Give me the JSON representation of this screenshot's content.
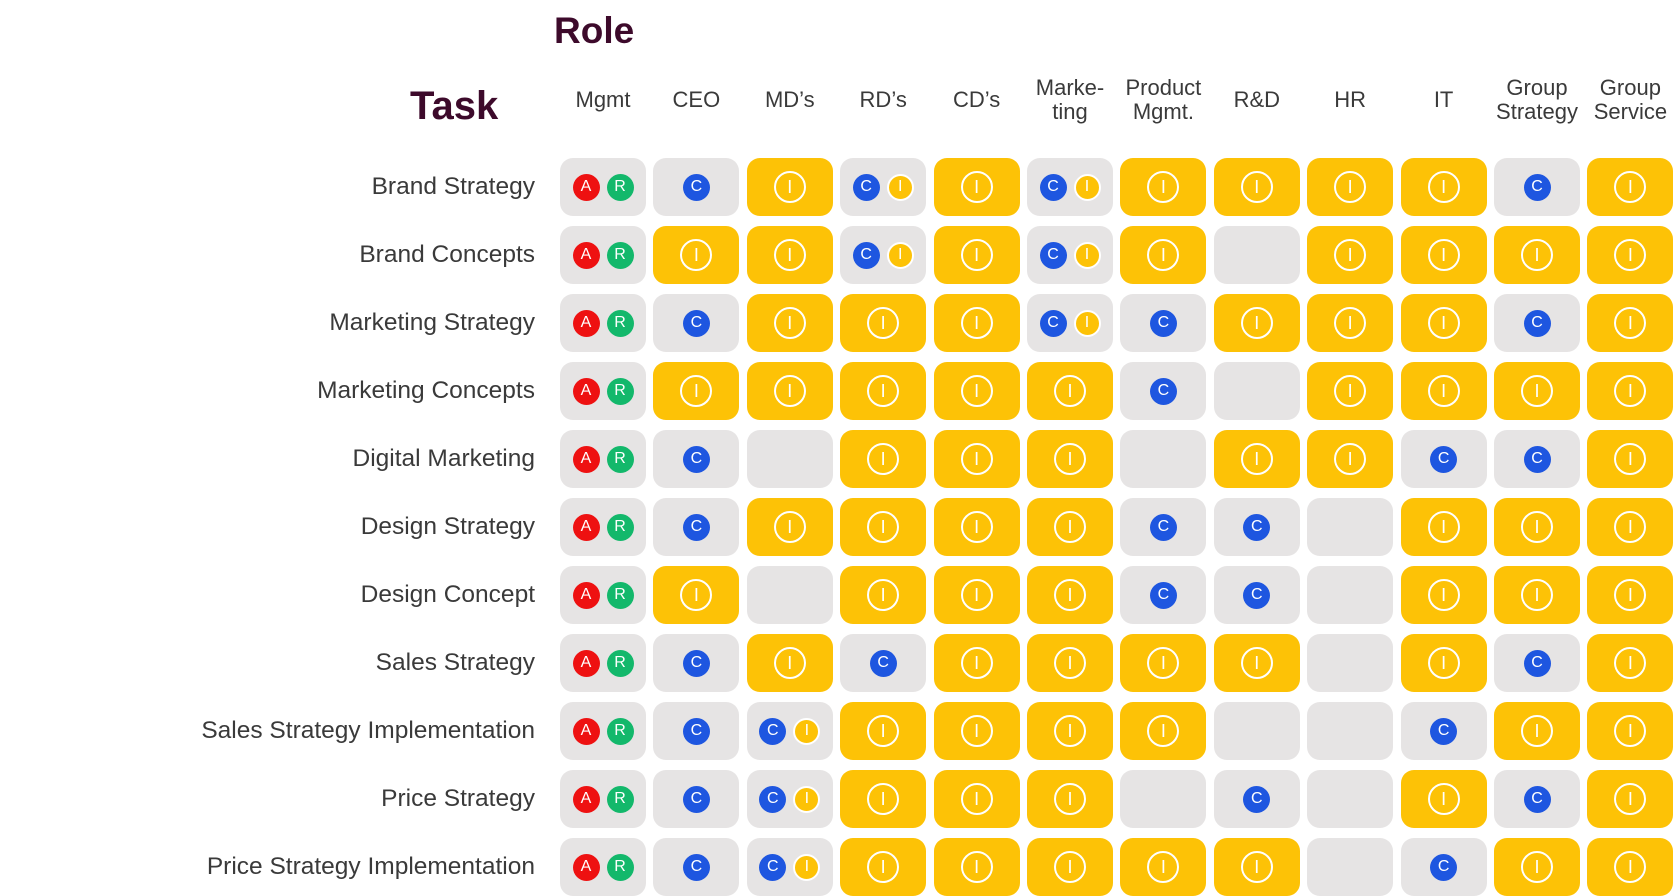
{
  "title_role": "Role",
  "title_task": "Task",
  "roles": [
    "Mgmt",
    "CEO",
    "MD’s",
    "RD’s",
    "CD’s",
    "Marke-\nting",
    "Product\nMgmt.",
    "R&D",
    "HR",
    "IT",
    "Group\nStrategy",
    "Group\nService"
  ],
  "colors": {
    "A": "#ee1111",
    "R": "#13b86b",
    "C": "#1e56e0",
    "I": "#fdc206",
    "cell_yellow": "#fdc206",
    "cell_gray": "#e6e4e4",
    "title": "#3d0a2b"
  },
  "tasks": [
    {
      "label": "Brand Strategy",
      "cells": [
        [
          "A",
          "R"
        ],
        [
          "C"
        ],
        [
          "I"
        ],
        [
          "C",
          "I"
        ],
        [
          "I"
        ],
        [
          "C",
          "I"
        ],
        [
          "I"
        ],
        [
          "I"
        ],
        [
          "I"
        ],
        [
          "I"
        ],
        [
          "C"
        ],
        [
          "I"
        ]
      ]
    },
    {
      "label": "Brand Concepts",
      "cells": [
        [
          "A",
          "R"
        ],
        [
          "I"
        ],
        [
          "I"
        ],
        [
          "C",
          "I"
        ],
        [
          "I"
        ],
        [
          "C",
          "I"
        ],
        [
          "I"
        ],
        [],
        [
          "I"
        ],
        [
          "I"
        ],
        [
          "I"
        ],
        [
          "I"
        ]
      ]
    },
    {
      "label": "Marketing Strategy",
      "cells": [
        [
          "A",
          "R"
        ],
        [
          "C"
        ],
        [
          "I"
        ],
        [
          "I"
        ],
        [
          "I"
        ],
        [
          "C",
          "I"
        ],
        [
          "C"
        ],
        [
          "I"
        ],
        [
          "I"
        ],
        [
          "I"
        ],
        [
          "C"
        ],
        [
          "I"
        ]
      ]
    },
    {
      "label": "Marketing Concepts",
      "cells": [
        [
          "A",
          "R"
        ],
        [
          "I"
        ],
        [
          "I"
        ],
        [
          "I"
        ],
        [
          "I"
        ],
        [
          "I"
        ],
        [
          "C"
        ],
        [],
        [
          "I"
        ],
        [
          "I"
        ],
        [
          "I"
        ],
        [
          "I"
        ]
      ]
    },
    {
      "label": "Digital Marketing",
      "cells": [
        [
          "A",
          "R"
        ],
        [
          "C"
        ],
        [],
        [
          "I"
        ],
        [
          "I"
        ],
        [
          "I"
        ],
        [],
        [
          "I"
        ],
        [
          "I"
        ],
        [
          "C"
        ],
        [
          "C"
        ],
        [
          "I"
        ]
      ]
    },
    {
      "label": "Design Strategy",
      "cells": [
        [
          "A",
          "R"
        ],
        [
          "C"
        ],
        [
          "I"
        ],
        [
          "I"
        ],
        [
          "I"
        ],
        [
          "I"
        ],
        [
          "C"
        ],
        [
          "C"
        ],
        [],
        [
          "I"
        ],
        [
          "I"
        ],
        [
          "I"
        ]
      ]
    },
    {
      "label": "Design Concept",
      "cells": [
        [
          "A",
          "R"
        ],
        [
          "I"
        ],
        [],
        [
          "I"
        ],
        [
          "I"
        ],
        [
          "I"
        ],
        [
          "C"
        ],
        [
          "C"
        ],
        [],
        [
          "I"
        ],
        [
          "I"
        ],
        [
          "I"
        ]
      ]
    },
    {
      "label": "Sales Strategy",
      "cells": [
        [
          "A",
          "R"
        ],
        [
          "C"
        ],
        [
          "I"
        ],
        [
          "C"
        ],
        [
          "I"
        ],
        [
          "I"
        ],
        [
          "I"
        ],
        [
          "I"
        ],
        [],
        [
          "I"
        ],
        [
          "C"
        ],
        [
          "I"
        ]
      ]
    },
    {
      "label": "Sales Strategy Implementation",
      "cells": [
        [
          "A",
          "R"
        ],
        [
          "C"
        ],
        [
          "C",
          "I"
        ],
        [
          "I"
        ],
        [
          "I"
        ],
        [
          "I"
        ],
        [
          "I"
        ],
        [],
        [],
        [
          "C"
        ],
        [
          "I"
        ],
        [
          "I"
        ]
      ]
    },
    {
      "label": "Price Strategy",
      "cells": [
        [
          "A",
          "R"
        ],
        [
          "C"
        ],
        [
          "C",
          "I"
        ],
        [
          "I"
        ],
        [
          "I"
        ],
        [
          "I"
        ],
        [],
        [
          "C"
        ],
        [],
        [
          "I"
        ],
        [
          "C"
        ],
        [
          "I"
        ]
      ]
    },
    {
      "label": "Price Strategy Implementation",
      "cells": [
        [
          "A",
          "R"
        ],
        [
          "C"
        ],
        [
          "C",
          "I"
        ],
        [
          "I"
        ],
        [
          "I"
        ],
        [
          "I"
        ],
        [
          "I"
        ],
        [
          "I"
        ],
        [],
        [
          "C"
        ],
        [
          "I"
        ],
        [
          "I"
        ]
      ]
    }
  ]
}
